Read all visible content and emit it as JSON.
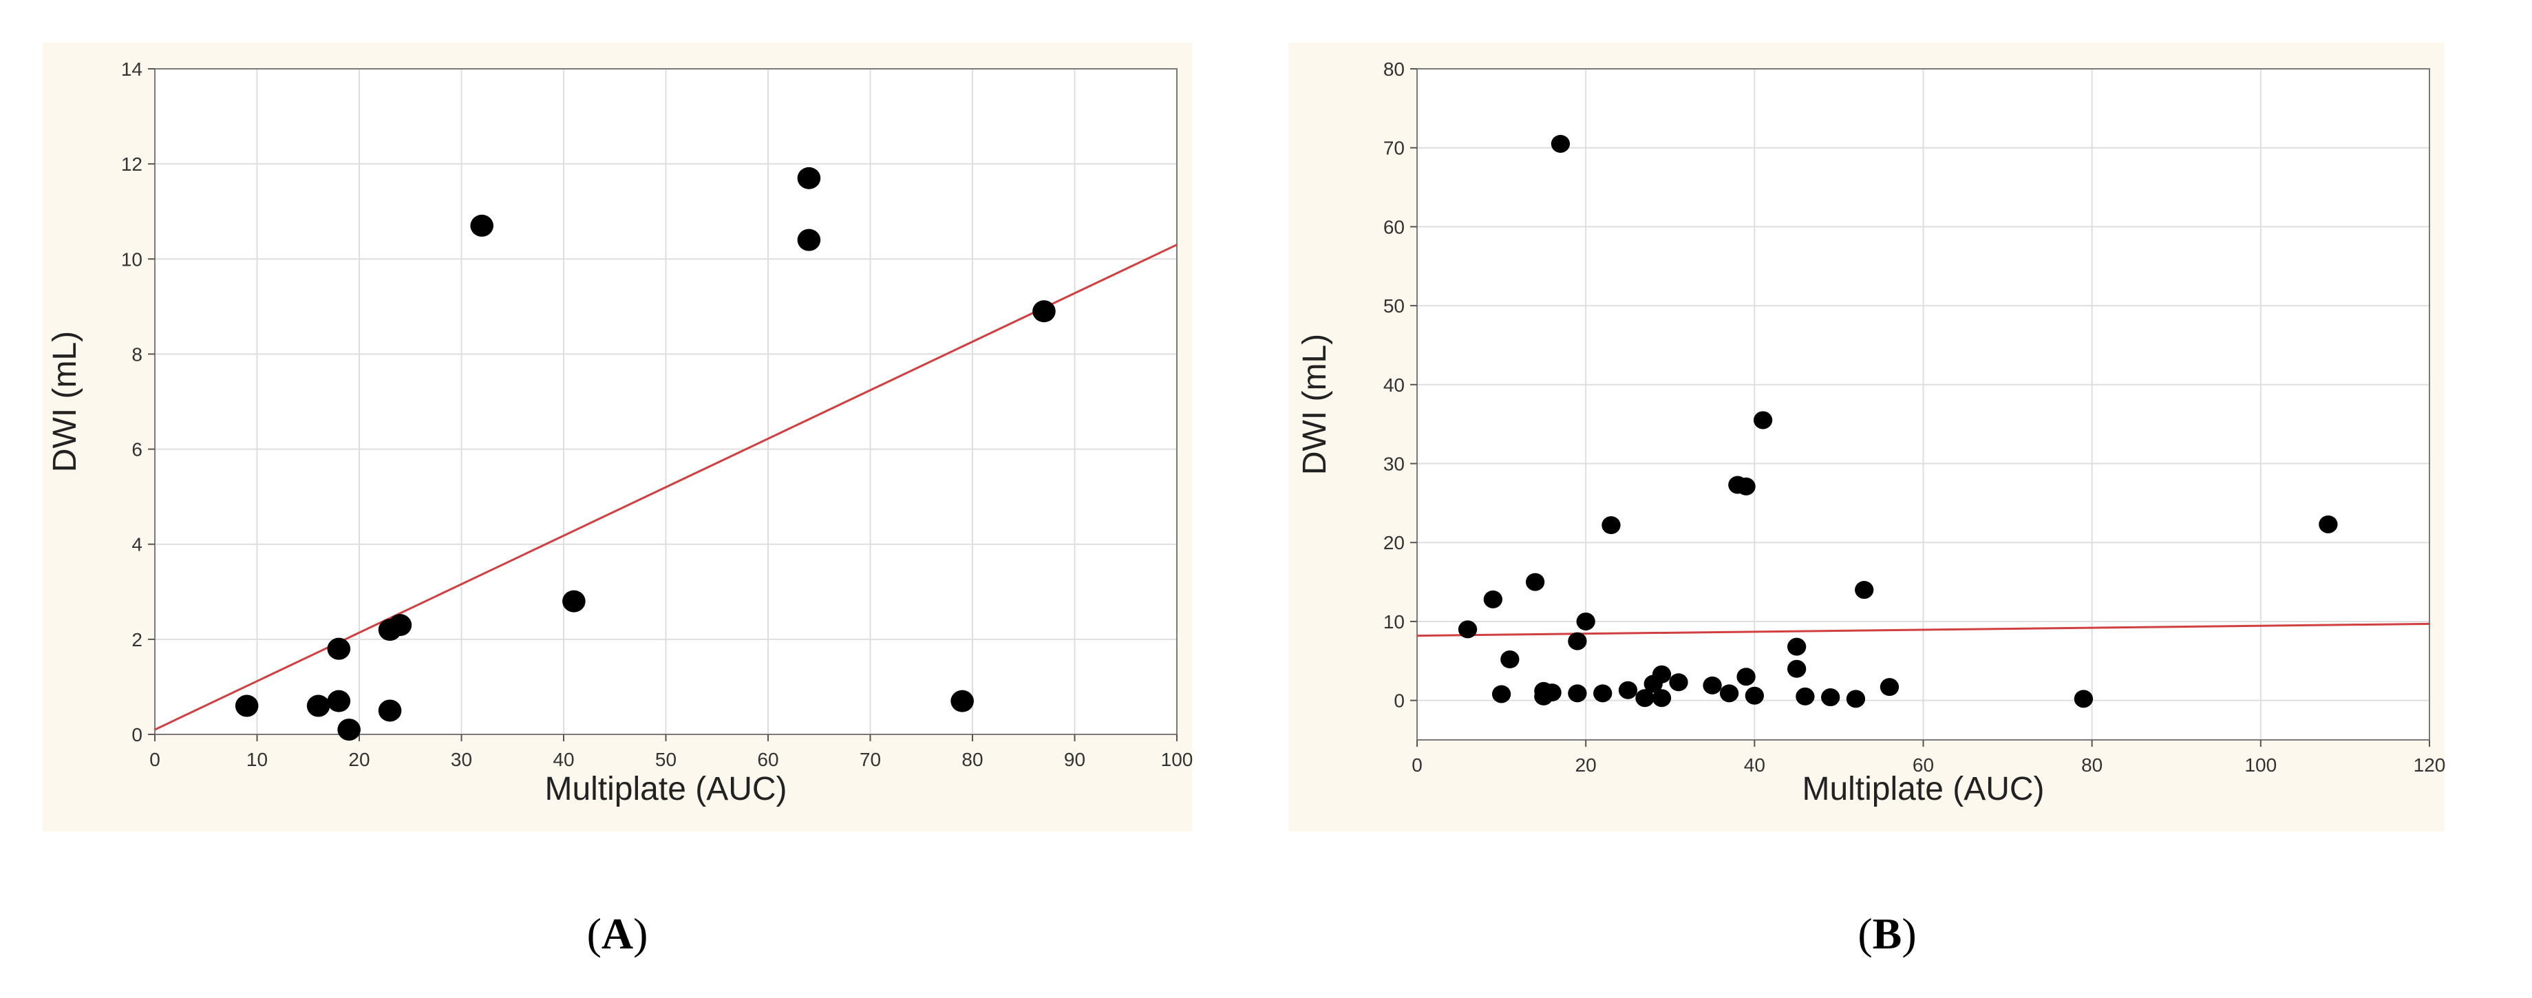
{
  "chart_data": [
    {
      "panel": "A",
      "type": "scatter",
      "xlabel": "Multiplate (AUC)",
      "ylabel": "DWI (mL)",
      "xlim": [
        0,
        100
      ],
      "ylim": [
        0,
        14
      ],
      "xticks": [
        0,
        10,
        20,
        30,
        40,
        50,
        60,
        70,
        80,
        90,
        100
      ],
      "yticks": [
        0,
        2,
        4,
        6,
        8,
        10,
        12,
        14
      ],
      "grid": true,
      "marker_color": "#000000",
      "fit_color": "#d04040",
      "fit_line": {
        "x": [
          0,
          100
        ],
        "y": [
          0.1,
          10.3
        ]
      },
      "points": [
        {
          "x": 9,
          "y": 0.6
        },
        {
          "x": 16,
          "y": 0.6
        },
        {
          "x": 18,
          "y": 0.7
        },
        {
          "x": 18,
          "y": 1.8
        },
        {
          "x": 19,
          "y": 0.1
        },
        {
          "x": 23,
          "y": 2.2
        },
        {
          "x": 24,
          "y": 2.3
        },
        {
          "x": 23,
          "y": 0.5
        },
        {
          "x": 32,
          "y": 10.7
        },
        {
          "x": 41,
          "y": 2.8
        },
        {
          "x": 64,
          "y": 11.7
        },
        {
          "x": 64,
          "y": 10.4
        },
        {
          "x": 79,
          "y": 0.7
        },
        {
          "x": 87,
          "y": 8.9
        }
      ]
    },
    {
      "panel": "B",
      "type": "scatter",
      "xlabel": "Multiplate (AUC)",
      "ylabel": "DWI (mL)",
      "xlim": [
        0,
        120
      ],
      "ylim": [
        -5,
        80
      ],
      "xticks": [
        0,
        20,
        40,
        60,
        80,
        100,
        120
      ],
      "yticks": [
        0,
        10,
        20,
        30,
        40,
        50,
        60,
        70,
        80
      ],
      "grid": true,
      "marker_color": "#000000",
      "fit_color": "#d04040",
      "fit_line": {
        "x": [
          0,
          120
        ],
        "y": [
          8.2,
          9.7
        ]
      },
      "points": [
        {
          "x": 6,
          "y": 9
        },
        {
          "x": 9,
          "y": 12.8
        },
        {
          "x": 10,
          "y": 0.8
        },
        {
          "x": 11,
          "y": 5.2
        },
        {
          "x": 14,
          "y": 15
        },
        {
          "x": 15,
          "y": 0.5
        },
        {
          "x": 15,
          "y": 1.2
        },
        {
          "x": 16,
          "y": 1
        },
        {
          "x": 17,
          "y": 70.5
        },
        {
          "x": 19,
          "y": 7.5
        },
        {
          "x": 19,
          "y": 0.9
        },
        {
          "x": 20,
          "y": 10
        },
        {
          "x": 22,
          "y": 0.9
        },
        {
          "x": 23,
          "y": 22.2
        },
        {
          "x": 25,
          "y": 1.3
        },
        {
          "x": 27,
          "y": 0.3
        },
        {
          "x": 28,
          "y": 2.1
        },
        {
          "x": 29,
          "y": 3.3
        },
        {
          "x": 29,
          "y": 0.3
        },
        {
          "x": 31,
          "y": 2.3
        },
        {
          "x": 35,
          "y": 1.9
        },
        {
          "x": 37,
          "y": 0.9
        },
        {
          "x": 38,
          "y": 27.3
        },
        {
          "x": 39,
          "y": 27.1
        },
        {
          "x": 39,
          "y": 3
        },
        {
          "x": 40,
          "y": 0.6
        },
        {
          "x": 41,
          "y": 35.5
        },
        {
          "x": 45,
          "y": 6.8
        },
        {
          "x": 45,
          "y": 4
        },
        {
          "x": 46,
          "y": 0.5
        },
        {
          "x": 49,
          "y": 0.4
        },
        {
          "x": 52,
          "y": 0.2
        },
        {
          "x": 53,
          "y": 14
        },
        {
          "x": 56,
          "y": 1.7
        },
        {
          "x": 79,
          "y": 0.2
        },
        {
          "x": 108,
          "y": 22.3
        }
      ]
    }
  ],
  "captions": {
    "a": {
      "open": "(",
      "letter": "A",
      "close": ")"
    },
    "b": {
      "open": "(",
      "letter": "B",
      "close": ")"
    }
  }
}
